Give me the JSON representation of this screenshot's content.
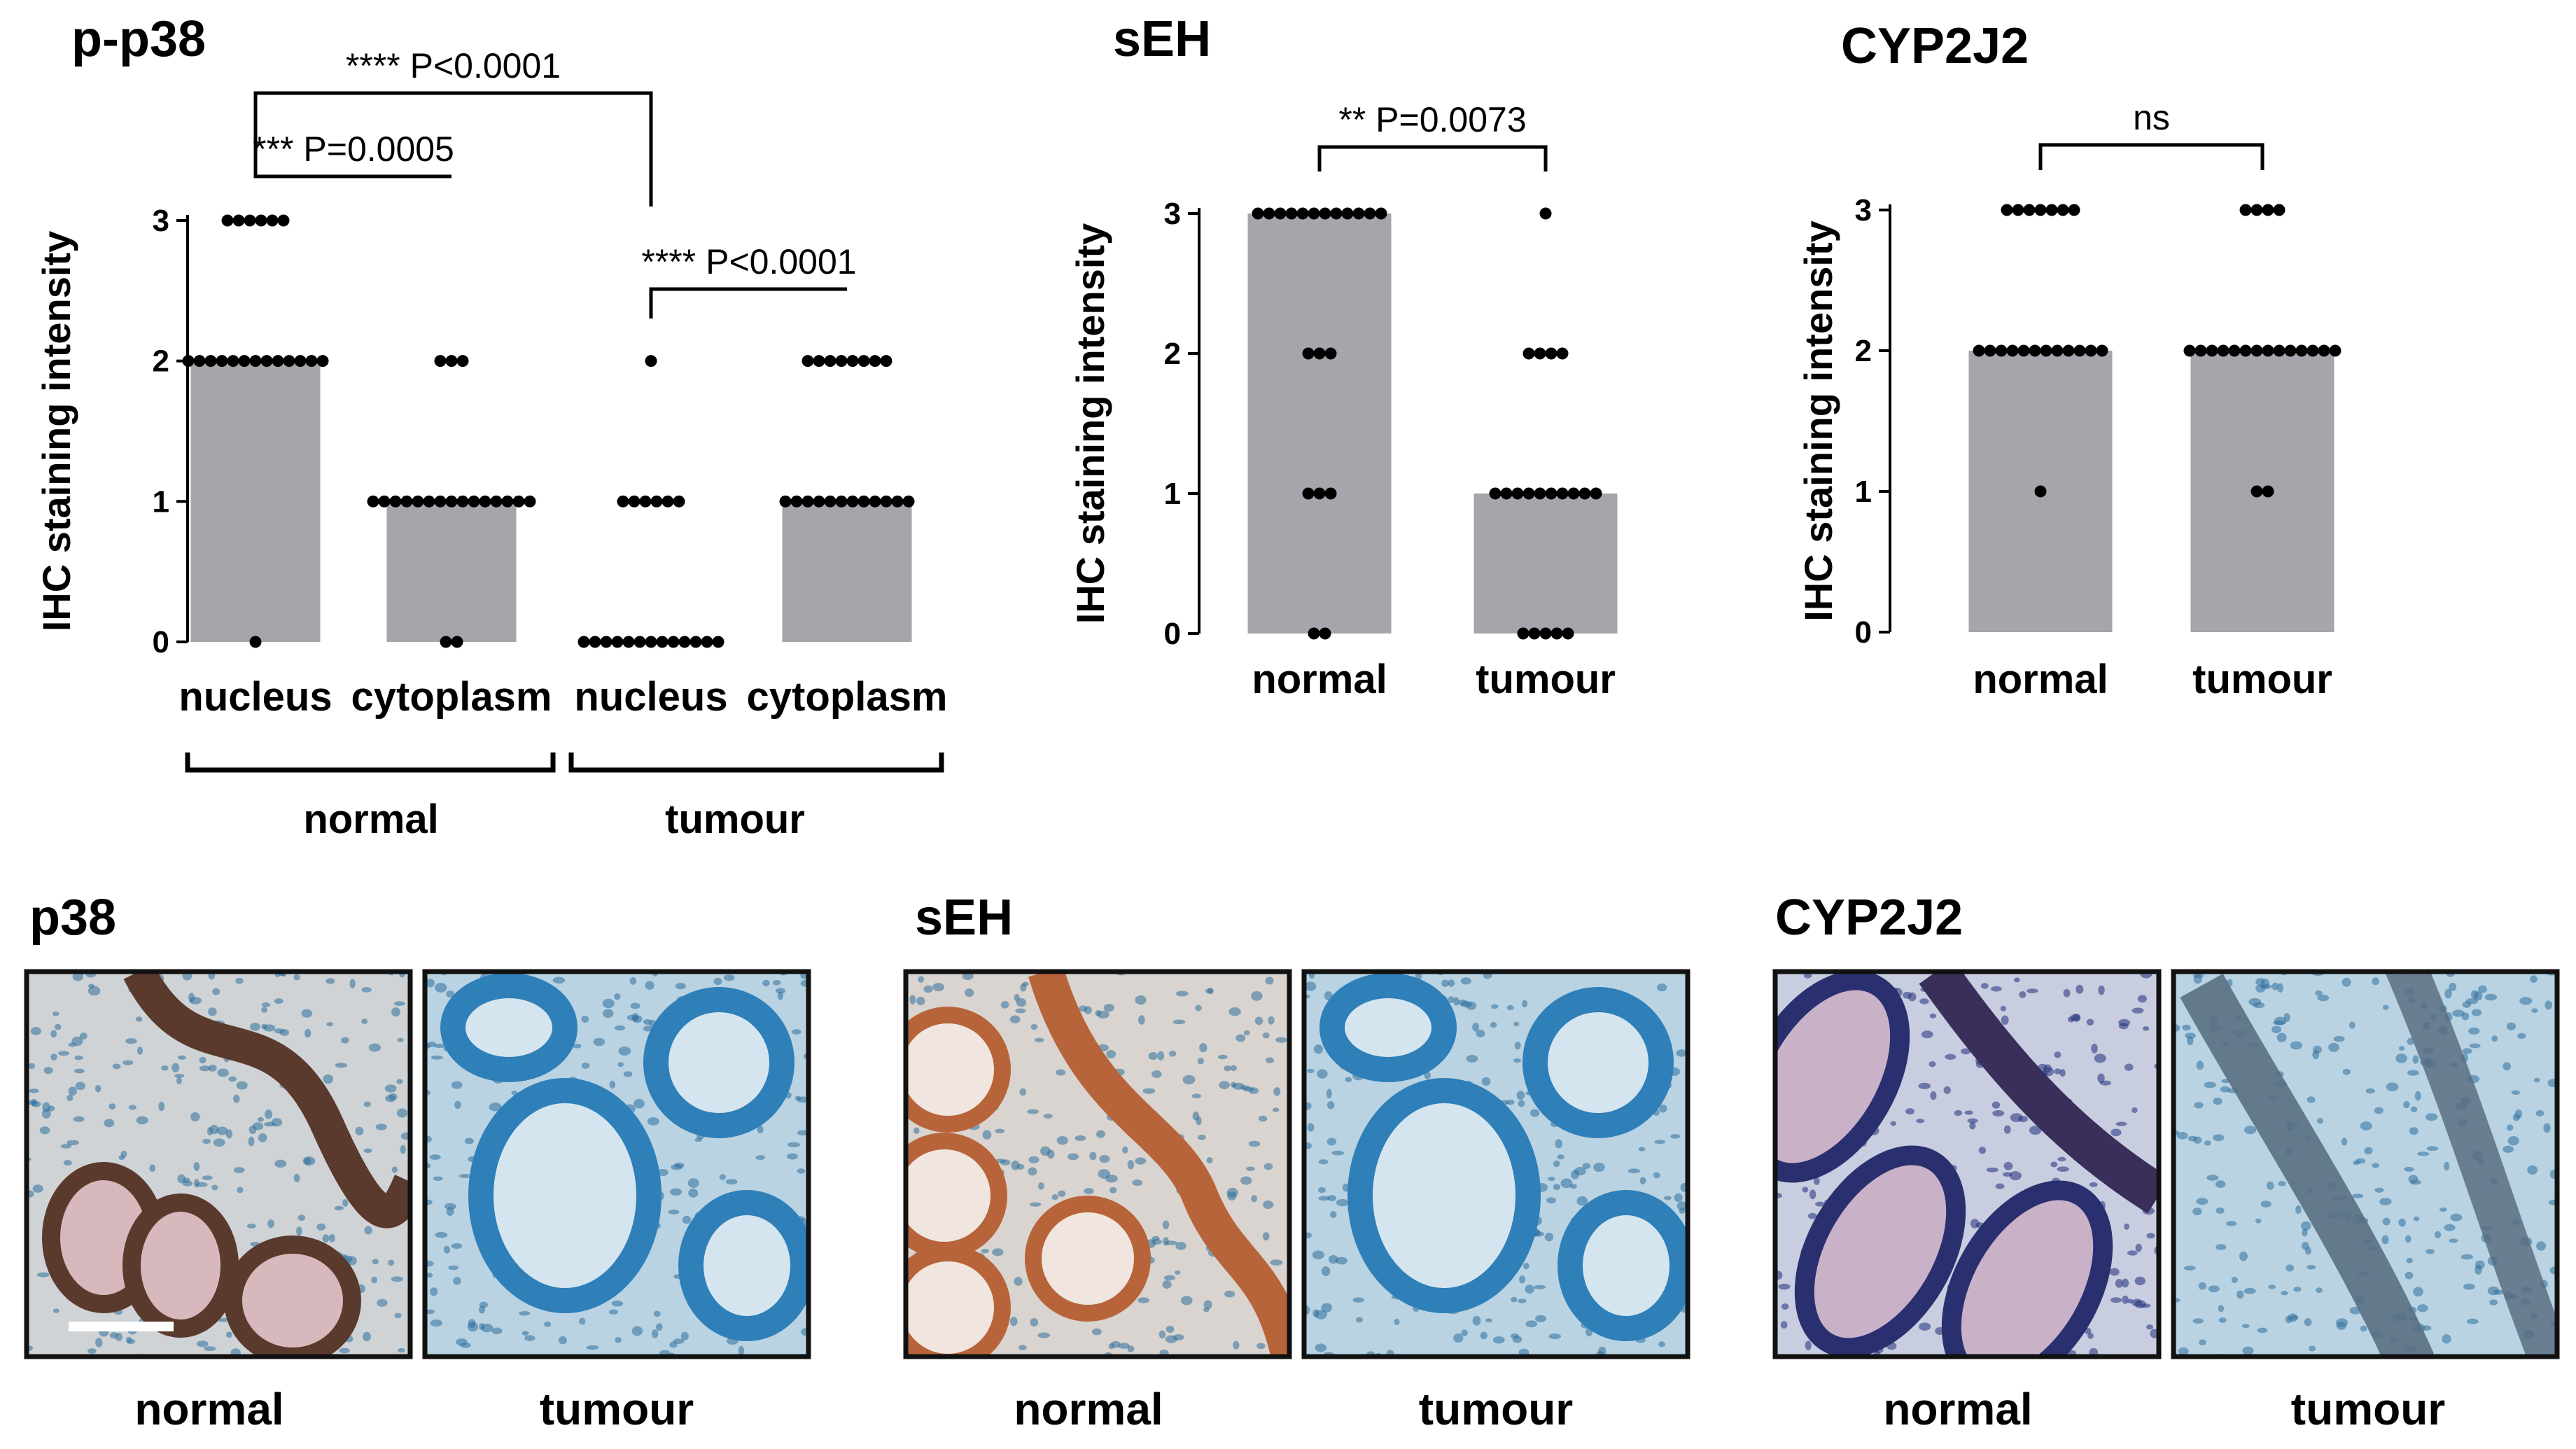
{
  "chart_data": [
    {
      "type": "bar",
      "title": "p-p38",
      "ylabel": "IHC staining intensity",
      "ylim": [
        0,
        3
      ],
      "yticks": [
        "0",
        "1",
        "2",
        "3"
      ],
      "categories": [
        "nucleus",
        "cytoplasm",
        "nucleus",
        "cytoplasm"
      ],
      "groups": [
        {
          "label": "normal",
          "categories": [
            0,
            1
          ]
        },
        {
          "label": "tumour",
          "categories": [
            2,
            3
          ]
        }
      ],
      "values": [
        2,
        1,
        0,
        1
      ],
      "points": [
        [
          0,
          2,
          2,
          2,
          2,
          2,
          2,
          2,
          2,
          2,
          2,
          2,
          2,
          2,
          3,
          3,
          3,
          3,
          3,
          3
        ],
        [
          0,
          0,
          1,
          1,
          1,
          1,
          1,
          1,
          1,
          1,
          1,
          1,
          1,
          1,
          1,
          1,
          1,
          2,
          2,
          2
        ],
        [
          0,
          0,
          0,
          0,
          0,
          0,
          0,
          0,
          0,
          0,
          0,
          0,
          0,
          1,
          1,
          1,
          1,
          1,
          1,
          2
        ],
        [
          1,
          1,
          1,
          1,
          1,
          1,
          1,
          1,
          1,
          1,
          1,
          1,
          2,
          2,
          2,
          2,
          2,
          2,
          2,
          2
        ]
      ],
      "comparisons": [
        {
          "from": 0,
          "to": 2,
          "label": "**** P<0.0001"
        },
        {
          "from": 0,
          "to": 1,
          "label": "*** P=0.0005"
        },
        {
          "from": 2,
          "to": 3,
          "label": "**** P<0.0001"
        }
      ]
    },
    {
      "type": "bar",
      "title": "sEH",
      "ylabel": "IHC staining intensity",
      "ylim": [
        0,
        3
      ],
      "yticks": [
        "0",
        "1",
        "2",
        "3"
      ],
      "categories": [
        "normal",
        "tumour"
      ],
      "values": [
        3,
        1
      ],
      "points": [
        [
          0,
          0,
          1,
          1,
          1,
          2,
          2,
          2,
          3,
          3,
          3,
          3,
          3,
          3,
          3,
          3,
          3,
          3,
          3,
          3
        ],
        [
          0,
          0,
          0,
          0,
          0,
          1,
          1,
          1,
          1,
          1,
          1,
          1,
          1,
          1,
          1,
          2,
          2,
          2,
          2,
          3
        ]
      ],
      "comparisons": [
        {
          "from": 0,
          "to": 1,
          "label": "** P=0.0073"
        }
      ]
    },
    {
      "type": "bar",
      "title": "CYP2J2",
      "ylabel": "IHC staining intensity",
      "ylim": [
        0,
        3
      ],
      "yticks": [
        "0",
        "1",
        "2",
        "3"
      ],
      "categories": [
        "normal",
        "tumour"
      ],
      "values": [
        2,
        2
      ],
      "points": [
        [
          1,
          2,
          2,
          2,
          2,
          2,
          2,
          2,
          2,
          2,
          2,
          2,
          2,
          3,
          3,
          3,
          3,
          3,
          3,
          3
        ],
        [
          1,
          1,
          2,
          2,
          2,
          2,
          2,
          2,
          2,
          2,
          2,
          2,
          2,
          2,
          2,
          2,
          3,
          3,
          3,
          3
        ]
      ],
      "comparisons": [
        {
          "from": 0,
          "to": 1,
          "label": "ns"
        }
      ]
    }
  ],
  "micrographs": [
    {
      "title": "p38",
      "images": [
        {
          "caption": "normal",
          "stain": "dark-brown",
          "icon": "micrograph-image"
        },
        {
          "caption": "tumour",
          "stain": "blue",
          "icon": "micrograph-image"
        }
      ]
    },
    {
      "title": "sEH",
      "images": [
        {
          "caption": "normal",
          "stain": "orange-brown",
          "icon": "micrograph-image"
        },
        {
          "caption": "tumour",
          "stain": "blue",
          "icon": "micrograph-image"
        }
      ]
    },
    {
      "title": "CYP2J2",
      "images": [
        {
          "caption": "normal",
          "stain": "purple",
          "icon": "micrograph-image"
        },
        {
          "caption": "tumour",
          "stain": "blue-brown",
          "icon": "micrograph-image"
        }
      ]
    }
  ],
  "colors": {
    "bar": "#a6a5ab",
    "dot": "#000000",
    "axis": "#000000",
    "stain_blue": "#3f8fbf",
    "stain_brown": "#5a3a2c",
    "stain_orange": "#b8643a",
    "stain_purple": "#3b3f8f",
    "stain_pink": "#d6b8bd",
    "background_light": "#dcdcdc"
  }
}
